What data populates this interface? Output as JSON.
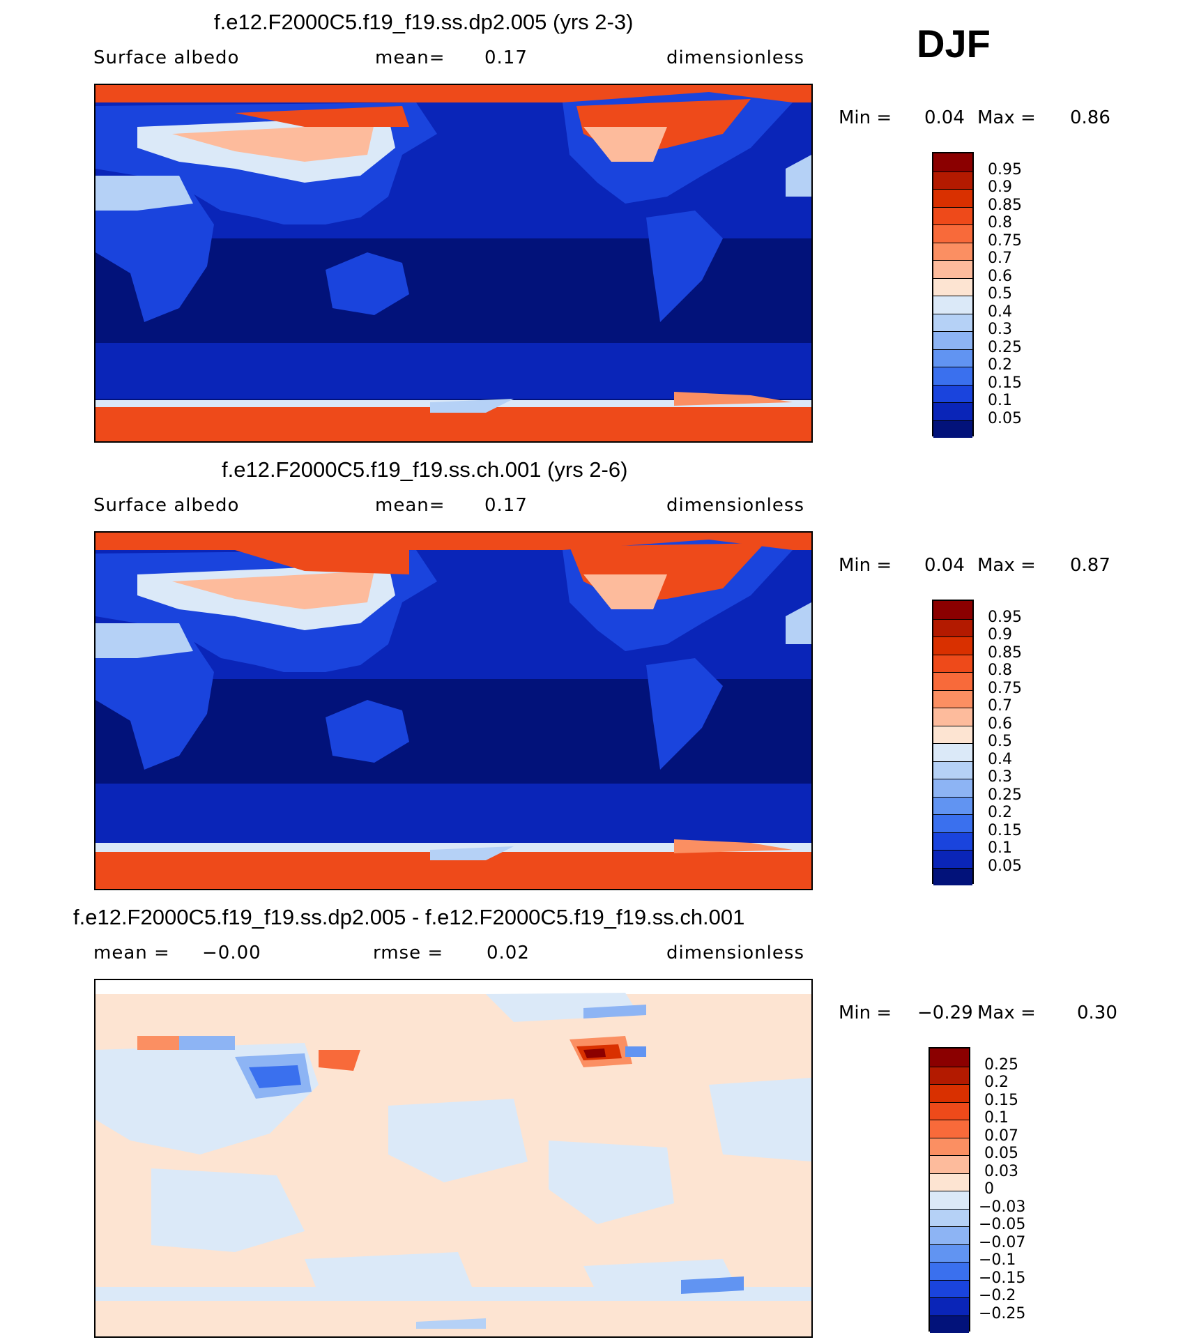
{
  "season": "DJF",
  "panels": [
    {
      "title": "f.e12.F2000C5.f19_f19.ss.dp2.005 (yrs 2-3)",
      "left_label": "Surface albedo",
      "center_label": "mean=",
      "center_value": "0.17",
      "right_label": "dimensionless",
      "min_label": "Min =",
      "min_value": "0.04",
      "max_label": "Max =",
      "max_value": "0.86",
      "levels": [
        "0.95",
        "0.9",
        "0.85",
        "0.8",
        "0.75",
        "0.7",
        "0.6",
        "0.5",
        "0.4",
        "0.3",
        "0.25",
        "0.2",
        "0.15",
        "0.1",
        "0.05"
      ],
      "colors": [
        "#8b0000",
        "#b31a00",
        "#d93000",
        "#ee4a1a",
        "#f86a3a",
        "#fb8f62",
        "#fdbb9c",
        "#fde4d2",
        "#dbe9f8",
        "#b5d1f6",
        "#8db4f4",
        "#6194f2",
        "#3a70ee",
        "#1a44dd",
        "#0a25b8",
        "#02127a"
      ]
    },
    {
      "title": "f.e12.F2000C5.f19_f19.ss.ch.001 (yrs 2-6)",
      "left_label": "Surface albedo",
      "center_label": "mean=",
      "center_value": "0.17",
      "right_label": "dimensionless",
      "min_label": "Min =",
      "min_value": "0.04",
      "max_label": "Max =",
      "max_value": "0.87",
      "levels": [
        "0.95",
        "0.9",
        "0.85",
        "0.8",
        "0.75",
        "0.7",
        "0.6",
        "0.5",
        "0.4",
        "0.3",
        "0.25",
        "0.2",
        "0.15",
        "0.1",
        "0.05"
      ],
      "colors": [
        "#8b0000",
        "#b31a00",
        "#d93000",
        "#ee4a1a",
        "#f86a3a",
        "#fb8f62",
        "#fdbb9c",
        "#fde4d2",
        "#dbe9f8",
        "#b5d1f6",
        "#8db4f4",
        "#6194f2",
        "#3a70ee",
        "#1a44dd",
        "#0a25b8",
        "#02127a"
      ]
    },
    {
      "title": "f.e12.F2000C5.f19_f19.ss.dp2.005 - f.e12.F2000C5.f19_f19.ss.ch.001",
      "left_label": "mean =",
      "left_value": "−0.00",
      "center_label": "rmse =",
      "center_value": "0.02",
      "right_label": "dimensionless",
      "min_label": "Min =",
      "min_value": "−0.29",
      "max_label": "Max =",
      "max_value": "0.30",
      "levels": [
        "0.25",
        "0.2",
        "0.15",
        "0.1",
        "0.07",
        "0.05",
        "0.03",
        "0",
        "−0.03",
        "−0.05",
        "−0.07",
        "−0.1",
        "−0.15",
        "−0.2",
        "−0.25"
      ],
      "colors": [
        "#8b0000",
        "#b31a00",
        "#d93000",
        "#ee4a1a",
        "#f86a3a",
        "#fb8f62",
        "#fdbb9c",
        "#fde4d2",
        "#dbe9f8",
        "#b5d1f6",
        "#8db4f4",
        "#6194f2",
        "#3a70ee",
        "#1a44dd",
        "#0a25b8",
        "#02127a"
      ]
    }
  ]
}
